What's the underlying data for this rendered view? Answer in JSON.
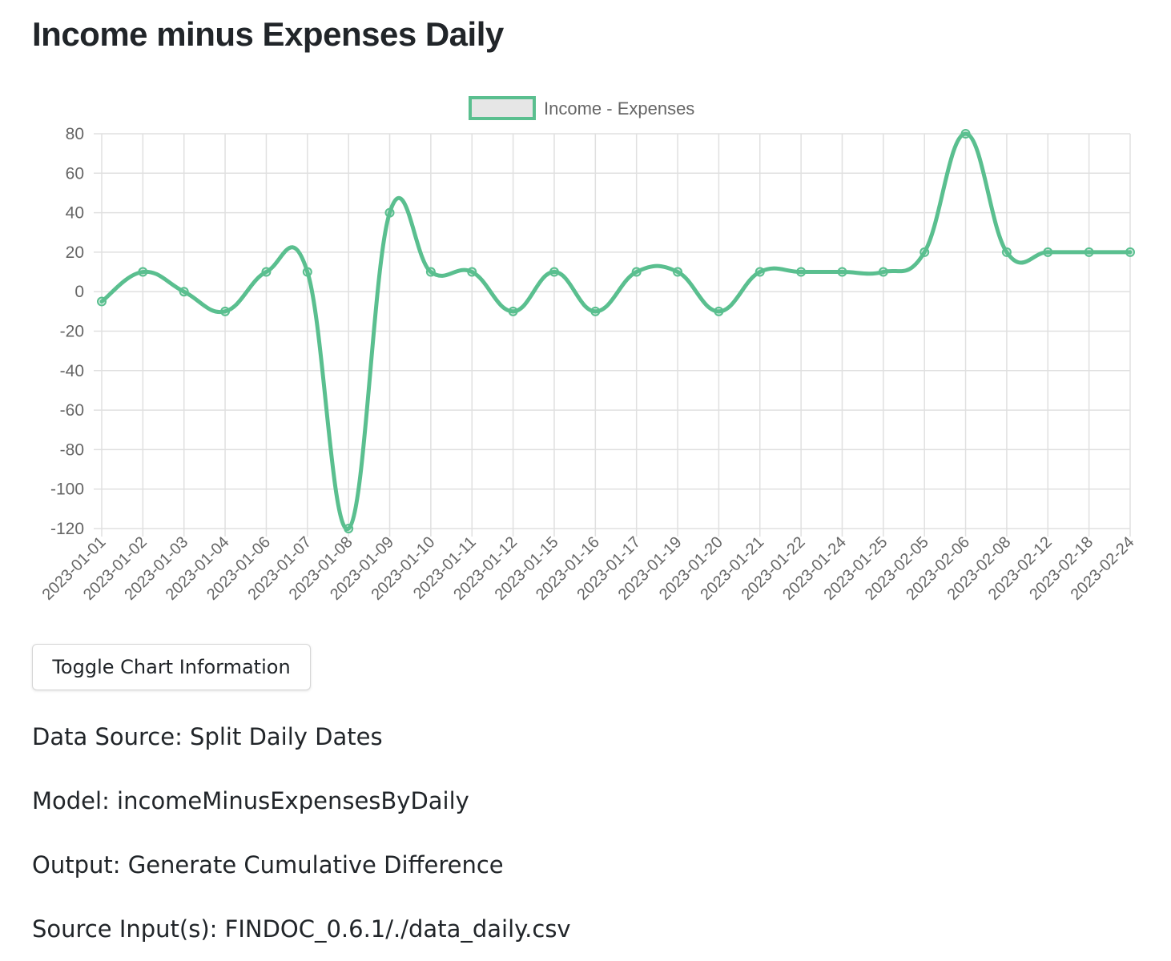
{
  "page": {
    "title": "Income minus Expenses Daily"
  },
  "toggle_button": {
    "label": "Toggle Chart Information"
  },
  "info": {
    "data_source": "Data Source: Split Daily Dates",
    "model": "Model: incomeMinusExpensesByDaily",
    "output": "Output: Generate Cumulative Difference",
    "source_inputs": "Source Input(s): FINDOC_0.6.1/./data_daily.csv"
  },
  "chart_data": {
    "type": "line",
    "title": "",
    "xlabel": "",
    "ylabel": "",
    "ylim": [
      -120,
      80
    ],
    "yticks": [
      80,
      60,
      40,
      20,
      0,
      -20,
      -40,
      -60,
      -80,
      -100,
      -120
    ],
    "grid": true,
    "legend_position": "top-center",
    "categories": [
      "2023-01-01",
      "2023-01-02",
      "2023-01-03",
      "2023-01-04",
      "2023-01-06",
      "2023-01-07",
      "2023-01-08",
      "2023-01-09",
      "2023-01-10",
      "2023-01-11",
      "2023-01-12",
      "2023-01-15",
      "2023-01-16",
      "2023-01-17",
      "2023-01-19",
      "2023-01-20",
      "2023-01-21",
      "2023-01-22",
      "2023-01-24",
      "2023-01-25",
      "2023-02-05",
      "2023-02-06",
      "2023-02-08",
      "2023-02-12",
      "2023-02-18",
      "2023-02-24"
    ],
    "series": [
      {
        "name": "Income -  Expenses",
        "color": "#5abf8f",
        "values": [
          -5,
          10,
          0,
          -10,
          10,
          10,
          -120,
          40,
          10,
          10,
          -10,
          10,
          -10,
          10,
          10,
          -10,
          10,
          10,
          10,
          10,
          20,
          80,
          20,
          20,
          20,
          20
        ]
      }
    ],
    "colors": {
      "line": "#5abf8f",
      "legend_fill": "#e6e6e6",
      "grid": "#e0e0e0",
      "tick_text": "#666666"
    }
  }
}
